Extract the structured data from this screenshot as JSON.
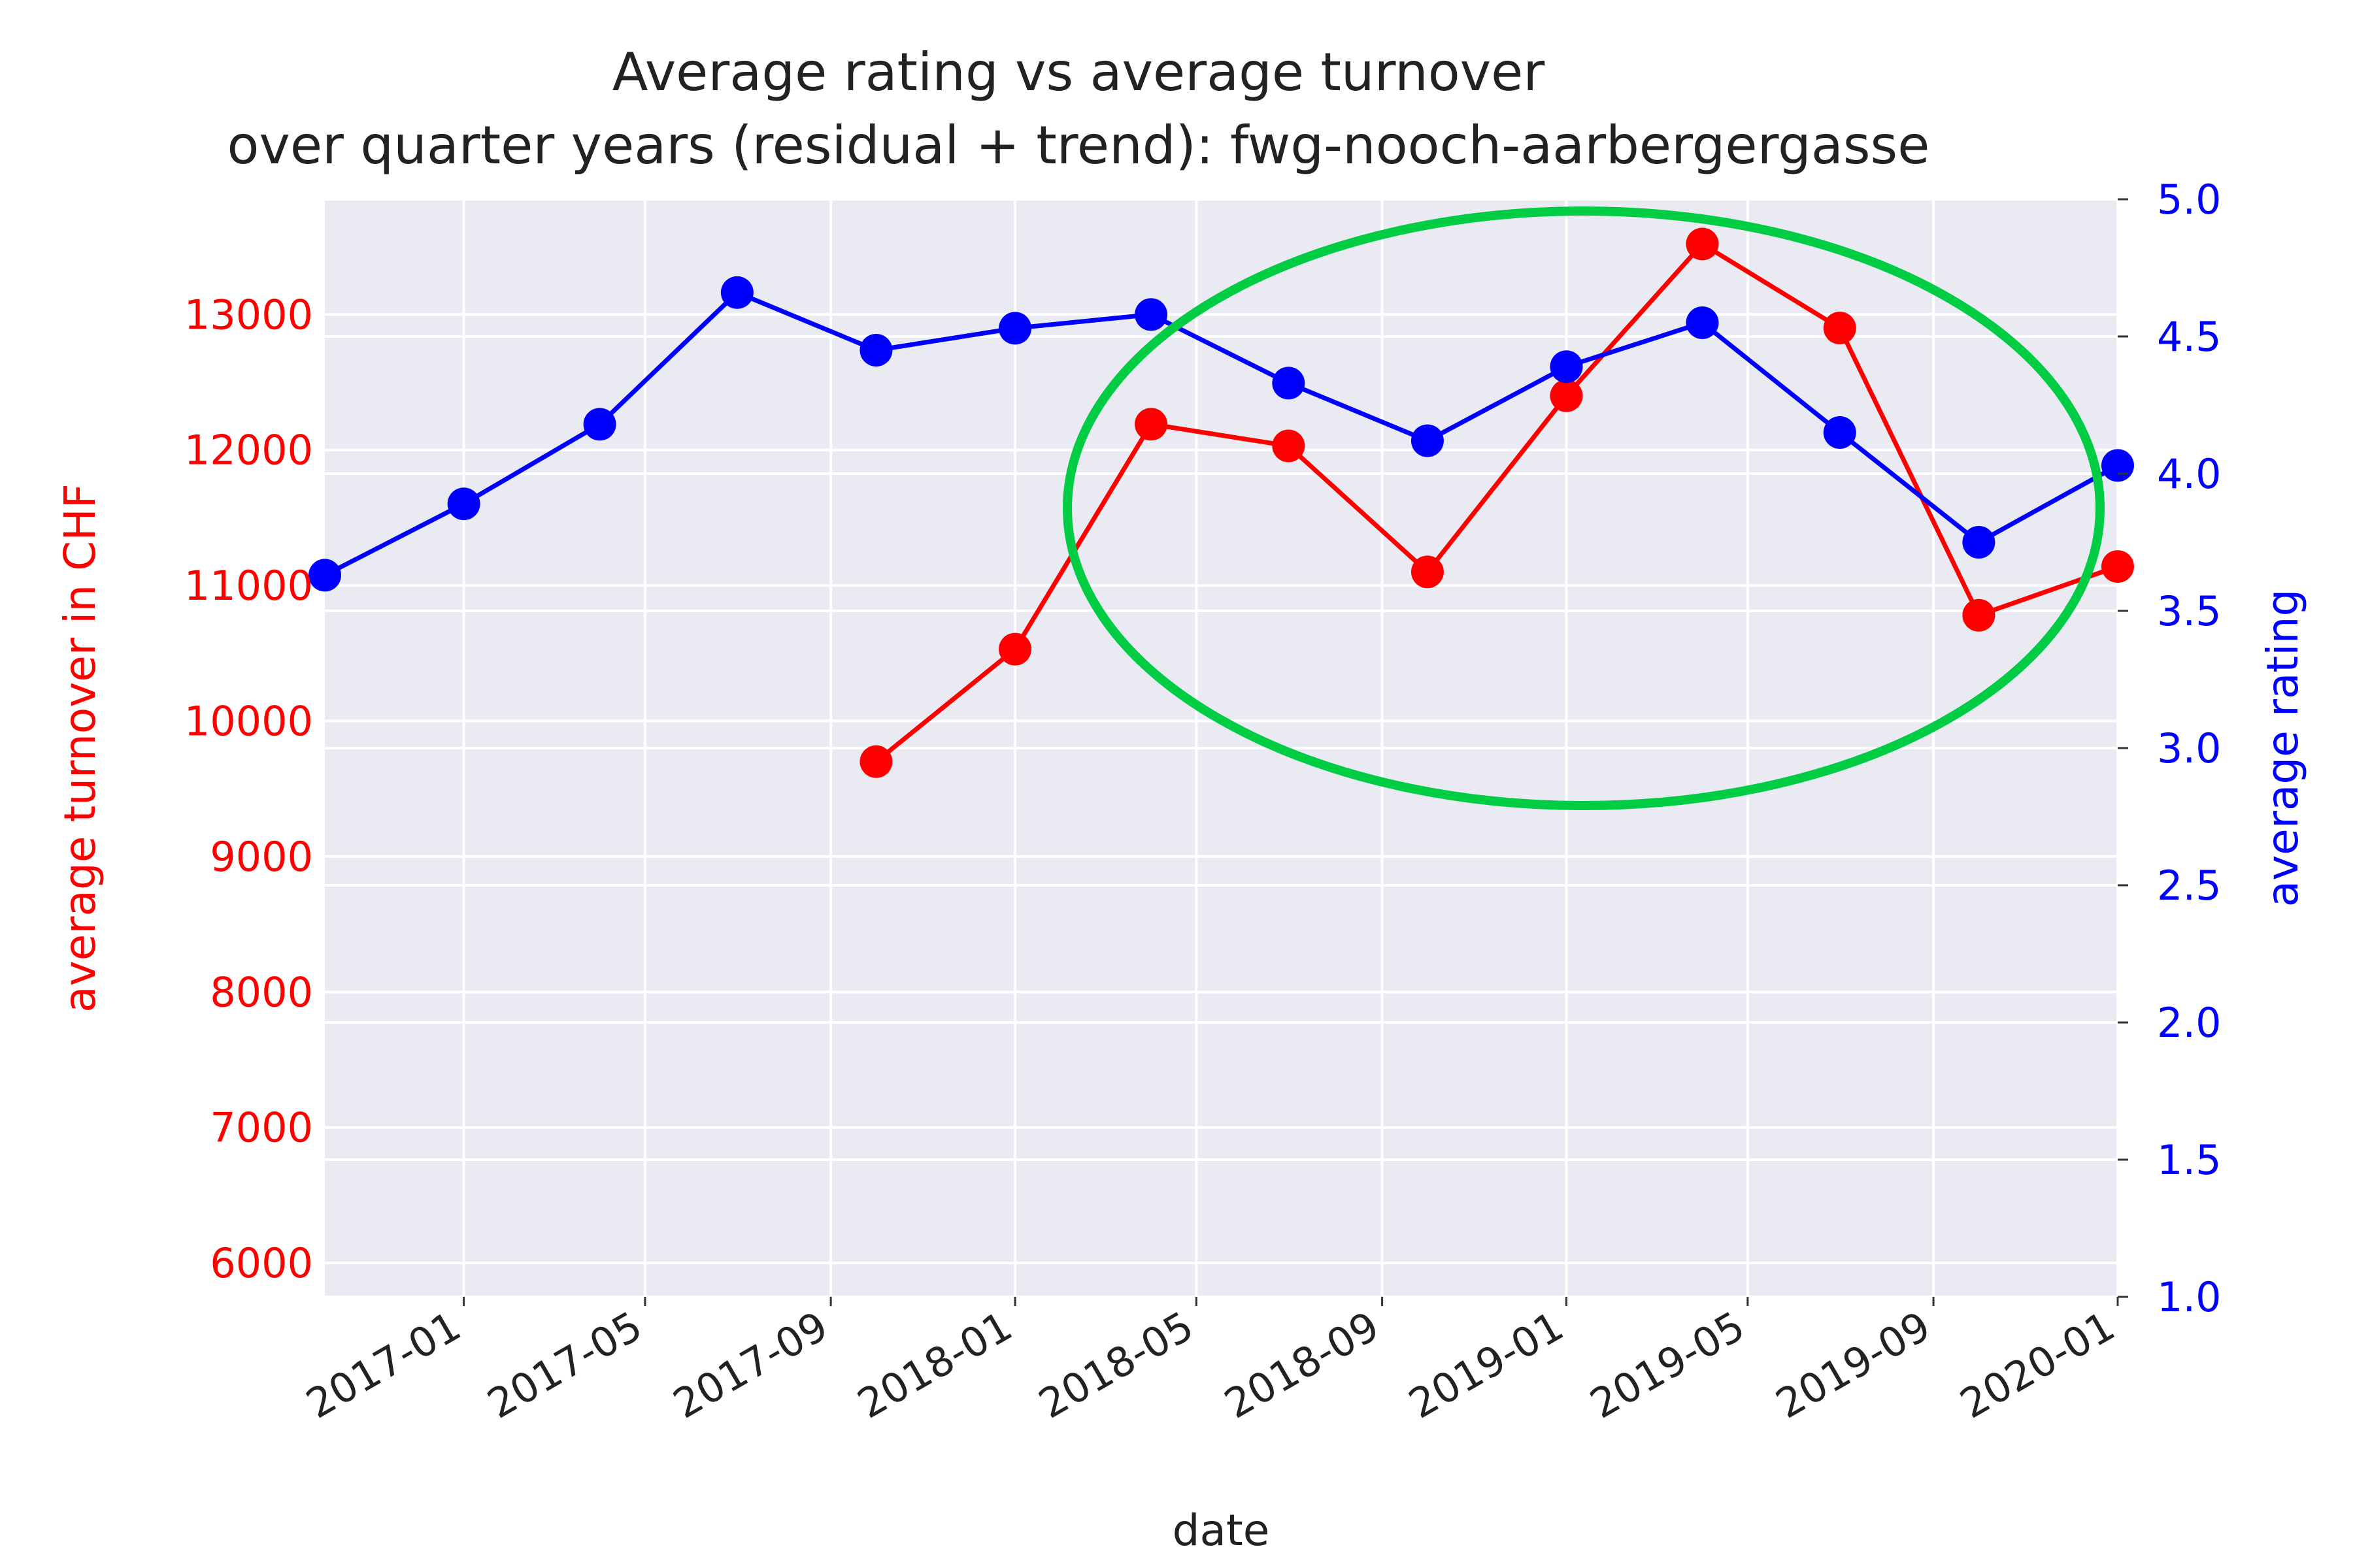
{
  "chart_data": {
    "type": "line",
    "title": [
      "Average rating vs average turnover",
      "over quarter years (residual + trend): fwg-nooch-aarbergergasse"
    ],
    "xlabel": "date",
    "ylabel_left": "average turnover in CHF",
    "ylabel_right": "average rating",
    "x_ticks": [
      "2017-01",
      "2017-05",
      "2017-09",
      "2018-01",
      "2018-05",
      "2018-09",
      "2019-01",
      "2019-05",
      "2019-09",
      "2020-01"
    ],
    "left_ticks": [
      6000,
      7000,
      8000,
      9000,
      10000,
      11000,
      12000,
      13000
    ],
    "right_ticks": [
      "1.0",
      "1.5",
      "2.0",
      "2.5",
      "3.0",
      "3.5",
      "4.0",
      "4.5",
      "5.0"
    ],
    "xlim": [
      "2016-10-01",
      "2020-01-01"
    ],
    "ylim_left": [
      5750,
      13850
    ],
    "ylim_right": [
      1.0,
      5.0
    ],
    "grid": true,
    "background_color": "#eaeaf2",
    "series": [
      {
        "axis": "left",
        "color": "#ff0000",
        "x": [
          "2017-10-01",
          "2018-01-01",
          "2018-04-01",
          "2018-07-01",
          "2018-10-01",
          "2019-01-01",
          "2019-04-01",
          "2019-07-01",
          "2019-10-01",
          "2020-01-01"
        ],
        "values": [
          9700,
          10530,
          12190,
          12030,
          11100,
          12400,
          13520,
          12900,
          10780,
          11140
        ]
      },
      {
        "axis": "right",
        "color": "#0000ff",
        "x": [
          "2016-10-01",
          "2017-01-01",
          "2017-04-01",
          "2017-07-01",
          "2017-10-01",
          "2018-01-01",
          "2018-04-01",
          "2018-07-01",
          "2018-10-01",
          "2019-01-01",
          "2019-04-01",
          "2019-07-01",
          "2019-10-01",
          "2020-01-01"
        ],
        "values": [
          3.63,
          3.89,
          4.18,
          4.66,
          4.45,
          4.53,
          4.58,
          4.33,
          4.12,
          4.39,
          4.55,
          4.15,
          3.75,
          4.03
        ]
      }
    ],
    "annotations": [
      {
        "shape": "ellipse",
        "color": "#00cc44"
      }
    ]
  }
}
